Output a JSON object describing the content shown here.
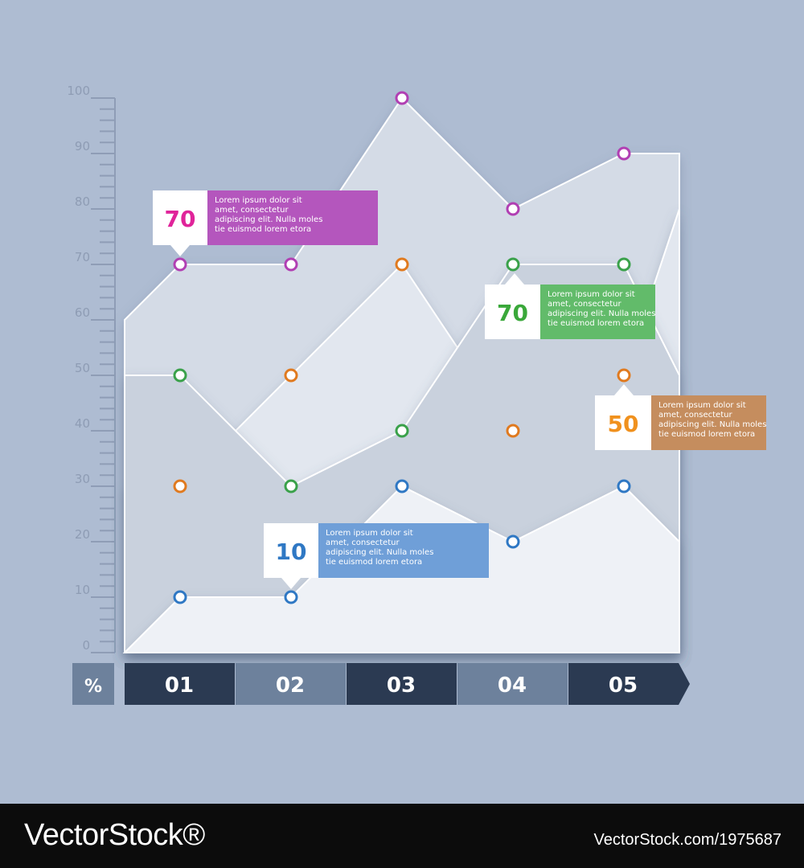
{
  "chart_data": {
    "type": "area",
    "ylim": [
      0,
      100
    ],
    "yticks": [
      "0",
      "10",
      "20",
      "30",
      "40",
      "50",
      "60",
      "70",
      "80",
      "90",
      "100"
    ],
    "y_unit": "%",
    "categories": [
      "01",
      "02",
      "03",
      "04",
      "05"
    ],
    "series": [
      {
        "color": "#b13fb3",
        "start": 60,
        "values": [
          70,
          70,
          100,
          80,
          90
        ],
        "end": 90
      },
      {
        "color": "#e07a1f",
        "start": 30,
        "values": [
          30,
          50,
          70,
          40,
          50
        ],
        "end": 80
      },
      {
        "color": "#3aa14a",
        "start": 50,
        "values": [
          50,
          30,
          40,
          70,
          70
        ],
        "end": 50
      },
      {
        "color": "#2f78c4",
        "start": 0,
        "values": [
          10,
          10,
          30,
          20,
          30
        ],
        "end": 20
      }
    ],
    "callouts": [
      {
        "value": "70",
        "text": [
          "Lorem ipsum dolor sit",
          "amet, consectetur",
          "adipiscing elit. Nulla moles",
          "tie euismod lorem etora"
        ],
        "color": "#b456bd",
        "number_color": "#e0249a"
      },
      {
        "value": "70",
        "text": [
          "Lorem ipsum dolor sit",
          "amet, consectetur",
          "adipiscing elit. Nulla moles",
          "tie euismod lorem etora"
        ],
        "color": "#62bb6a",
        "number_color": "#3aa83a"
      },
      {
        "value": "50",
        "text": [
          "Lorem ipsum dolor sit",
          "amet, consectetur",
          "adipiscing elit. Nulla moles",
          "tie euismod lorem etora"
        ],
        "color": "#c58d5e",
        "number_color": "#f0911e"
      },
      {
        "value": "10",
        "text": [
          "Lorem ipsum dolor sit",
          "amet, consectetur",
          "adipiscing elit. Nulla moles",
          "tie euismod lorem etora"
        ],
        "color": "#6f9fd8",
        "number_color": "#2f78c4"
      }
    ]
  },
  "watermark": {
    "left": "VectorStock®",
    "right": "VectorStock.com/1975687"
  }
}
